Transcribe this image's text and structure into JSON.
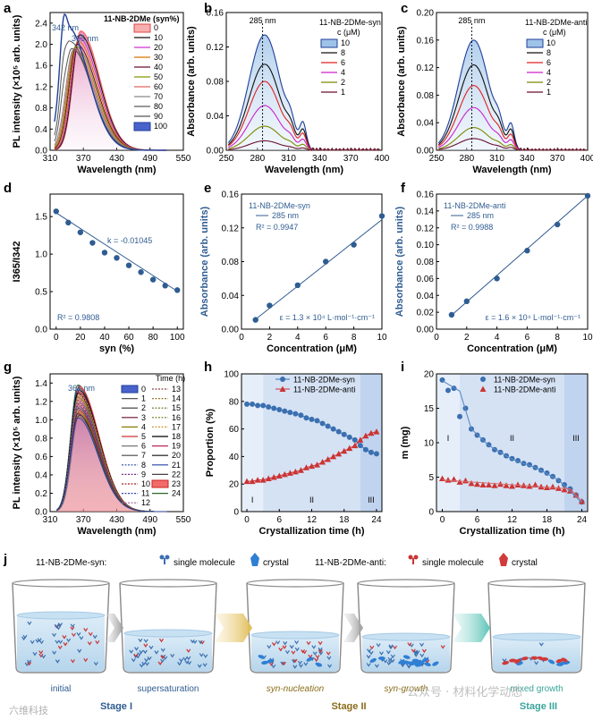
{
  "panel_letters": [
    "a",
    "b",
    "c",
    "d",
    "e",
    "f",
    "g",
    "h",
    "i",
    "j"
  ],
  "colors": {
    "blue_dark": "#1f3f99",
    "axis_blue": "#2f5c91",
    "red": "#cc2222",
    "syn": "#3a6fb0",
    "anti": "#cc3333",
    "stage_blue": "#2f5c91",
    "stage_gold": "#8a6d1a",
    "stage_teal": "#3aa59a"
  },
  "chart_data": [
    {
      "panel": "a",
      "type": "line",
      "xlabel": "Wavelength (nm)",
      "ylabel": "PL intensity (×10⁵ arb. units)",
      "xlim": [
        310,
        550
      ],
      "ylim": [
        0,
        2.6
      ],
      "xticks": [
        "310",
        "370",
        "430",
        "490",
        "550"
      ],
      "yticks": [
        "0.0",
        "0.4",
        "0.8",
        "1.2",
        "1.6",
        "2.0",
        "2.4"
      ],
      "legend_title": "11-NB-2DMe (syn%)",
      "legend_entries": [
        "0",
        "10",
        "20",
        "30",
        "40",
        "50",
        "60",
        "70",
        "80",
        "90",
        "100"
      ],
      "annotations": [
        "342 nm",
        "365 nm"
      ],
      "series": [
        {
          "name": "0",
          "peak_x": 365,
          "peak_y": 2.25
        },
        {
          "name": "10",
          "peak_x": 364,
          "peak_y": 2.18
        },
        {
          "name": "20",
          "peak_x": 362,
          "peak_y": 2.12
        },
        {
          "name": "30",
          "peak_x": 360,
          "peak_y": 2.06
        },
        {
          "name": "40",
          "peak_x": 358,
          "peak_y": 2.0
        },
        {
          "name": "50",
          "peak_x": 356,
          "peak_y": 1.96
        },
        {
          "name": "60",
          "peak_x": 354,
          "peak_y": 1.92
        },
        {
          "name": "70",
          "peak_x": 352,
          "peak_y": 1.9
        },
        {
          "name": "80",
          "peak_x": 349,
          "peak_y": 1.92
        },
        {
          "name": "90",
          "peak_x": 346,
          "peak_y": 2.05
        },
        {
          "name": "100",
          "peak_x": 342,
          "peak_y": 2.32
        }
      ]
    },
    {
      "panel": "b",
      "type": "line",
      "xlabel": "Wavelength (nm)",
      "ylabel": "Absorbance (arb. units)",
      "xlim": [
        250,
        400
      ],
      "ylim": [
        0,
        0.16
      ],
      "xticks": [
        "250",
        "280",
        "310",
        "340",
        "370",
        "400"
      ],
      "yticks": [
        "0.00",
        "0.04",
        "0.08",
        "0.12",
        "0.16"
      ],
      "legend_title": "11-NB-2DMe-syn",
      "legend_subtitle": "c (μM)",
      "legend_entries": [
        "10",
        "8",
        "6",
        "4",
        "2",
        "1"
      ],
      "annotations": [
        "285 nm"
      ],
      "series": [
        {
          "name": "10",
          "peak": 0.134
        },
        {
          "name": "8",
          "peak": 0.1
        },
        {
          "name": "6",
          "peak": 0.08
        },
        {
          "name": "4",
          "peak": 0.052
        },
        {
          "name": "2",
          "peak": 0.028
        },
        {
          "name": "1",
          "peak": 0.011
        }
      ]
    },
    {
      "panel": "c",
      "type": "line",
      "xlabel": "Wavelength (nm)",
      "ylabel": "Absorbance (arb. units)",
      "xlim": [
        250,
        400
      ],
      "ylim": [
        0,
        0.2
      ],
      "xticks": [
        "250",
        "280",
        "310",
        "340",
        "370",
        "400"
      ],
      "yticks": [
        "0.00",
        "0.04",
        "0.08",
        "0.12",
        "0.16",
        "0.20"
      ],
      "legend_title": "11-NB-2DMe-anti",
      "legend_subtitle": "c (μM)",
      "legend_entries": [
        "10",
        "8",
        "6",
        "4",
        "2",
        "1"
      ],
      "annotations": [
        "285 nm"
      ],
      "series": [
        {
          "name": "10",
          "peak": 0.16
        },
        {
          "name": "8",
          "peak": 0.124
        },
        {
          "name": "6",
          "peak": 0.094
        },
        {
          "name": "4",
          "peak": 0.062
        },
        {
          "name": "2",
          "peak": 0.033
        },
        {
          "name": "1",
          "peak": 0.017
        }
      ]
    },
    {
      "panel": "d",
      "type": "scatter",
      "xlabel": "syn (%)",
      "ylabel": "I365/I342",
      "xlim": [
        -5,
        105
      ],
      "ylim": [
        0.0,
        1.8
      ],
      "xticks": [
        "0",
        "20",
        "40",
        "60",
        "80",
        "100"
      ],
      "yticks": [
        "0.0",
        "0.5",
        "1.0",
        "1.5"
      ],
      "x": [
        0,
        10,
        20,
        30,
        40,
        50,
        60,
        70,
        80,
        90,
        100
      ],
      "y": [
        1.57,
        1.42,
        1.29,
        1.15,
        1.02,
        0.95,
        0.85,
        0.76,
        0.66,
        0.58,
        0.52
      ],
      "annotations": [
        "k = -0.01045",
        "R² = 0.9808"
      ],
      "fit": {
        "slope": -0.01045,
        "intercept": 1.55
      }
    },
    {
      "panel": "e",
      "type": "scatter",
      "xlabel": "Concentration (μM)",
      "ylabel": "Absorbance (arb. units)",
      "xlim": [
        0,
        10
      ],
      "ylim": [
        0.0,
        0.16
      ],
      "xticks": [
        "0",
        "2",
        "4",
        "6",
        "8",
        "10"
      ],
      "yticks": [
        "0.00",
        "0.04",
        "0.08",
        "0.12",
        "0.16"
      ],
      "x": [
        1,
        2,
        4,
        6,
        8,
        10
      ],
      "y": [
        0.011,
        0.028,
        0.052,
        0.08,
        0.1,
        0.134
      ],
      "legend_title": "11-NB-2DMe-syn",
      "legend_entries": [
        "285 nm"
      ],
      "annotations": [
        "R² = 0.9947",
        "ε = 1.3 × 10⁴ L·mol⁻¹·cm⁻¹"
      ],
      "fit": {
        "slope": 0.01312,
        "intercept": -0.0015
      }
    },
    {
      "panel": "f",
      "type": "scatter",
      "xlabel": "Concentration (μM)",
      "ylabel": "Absorbance (arb. units)",
      "xlim": [
        0,
        10
      ],
      "ylim": [
        0.0,
        0.16
      ],
      "xticks": [
        "0",
        "2",
        "4",
        "6",
        "8",
        "10"
      ],
      "yticks": [
        "0.00",
        "0.02",
        "0.04",
        "0.06",
        "0.08",
        "0.10",
        "0.12",
        "0.14",
        "0.16"
      ],
      "x": [
        1,
        2,
        4,
        6,
        8,
        10
      ],
      "y": [
        0.017,
        0.033,
        0.06,
        0.093,
        0.124,
        0.158
      ],
      "legend_title": "11-NB-2DMe-anti",
      "legend_entries": [
        "285 nm"
      ],
      "annotations": [
        "R² = 0.9988",
        "ε = 1.6 × 10⁴ L·mol⁻¹·cm⁻¹"
      ],
      "fit": {
        "slope": 0.01572,
        "intercept": 0.0008
      }
    },
    {
      "panel": "g",
      "type": "line",
      "xlabel": "Wavelength (nm)",
      "ylabel": "PL intensity (×10⁵ arb. units)",
      "xlim": [
        310,
        550
      ],
      "ylim": [
        0,
        1.5
      ],
      "xticks": [
        "310",
        "370",
        "430",
        "490",
        "550"
      ],
      "yticks": [
        "0.0",
        "0.2",
        "0.4",
        "0.6",
        "0.8",
        "1.0",
        "1.2",
        "1.4"
      ],
      "legend_title": "Time (h)",
      "legend_entries": [
        "0",
        "1",
        "2",
        "3",
        "4",
        "5",
        "6",
        "7",
        "8",
        "9",
        "10",
        "11",
        "12",
        "13",
        "14",
        "15",
        "16",
        "17",
        "18",
        "19",
        "20",
        "21",
        "22",
        "23",
        "24"
      ],
      "annotations": [
        "361 nm"
      ],
      "peak_x": 361,
      "peak_y_range": [
        1.02,
        1.38
      ]
    },
    {
      "panel": "h",
      "type": "line",
      "xlabel": "Crystallization time (h)",
      "ylabel": "Proportion (%)",
      "xlim": [
        -1,
        25
      ],
      "ylim": [
        0,
        100
      ],
      "xticks": [
        "0",
        "6",
        "12",
        "18",
        "24"
      ],
      "yticks": [
        "0",
        "20",
        "40",
        "60",
        "80",
        "100"
      ],
      "x": [
        0,
        1,
        2,
        3,
        4,
        5,
        6,
        7,
        8,
        9,
        10,
        11,
        12,
        13,
        14,
        15,
        16,
        17,
        18,
        19,
        20,
        21,
        22,
        23,
        24
      ],
      "series": [
        {
          "name": "11-NB-2DMe-syn",
          "values": [
            78,
            78,
            77,
            77,
            76,
            75,
            74,
            73,
            72,
            71,
            70,
            68,
            67,
            66,
            64,
            62,
            60,
            58,
            56,
            54,
            52,
            48,
            45,
            43,
            42
          ]
        },
        {
          "name": "11-NB-2DMe-anti",
          "values": [
            22,
            22,
            23,
            23,
            24,
            25,
            26,
            27,
            28,
            29,
            30,
            32,
            33,
            34,
            36,
            38,
            40,
            42,
            44,
            46,
            48,
            52,
            55,
            57,
            58
          ]
        }
      ],
      "stage_labels": [
        "I",
        "II",
        "III"
      ],
      "stage_bounds": [
        3,
        21
      ]
    },
    {
      "panel": "i",
      "type": "scatter",
      "xlabel": "Crystallization time (h)",
      "ylabel": "m (mg)",
      "xlim": [
        -1,
        25
      ],
      "ylim": [
        0,
        20
      ],
      "xticks": [
        "0",
        "6",
        "12",
        "18",
        "24"
      ],
      "yticks": [
        "0",
        "5",
        "10",
        "15",
        "20"
      ],
      "x": [
        0,
        1,
        2,
        3,
        4,
        5,
        6,
        7,
        8,
        9,
        10,
        11,
        12,
        13,
        14,
        15,
        16,
        17,
        18,
        19,
        20,
        21,
        22,
        23,
        24
      ],
      "series": [
        {
          "name": "11-NB-2DMe-syn",
          "values": [
            19.1,
            17.6,
            17.9,
            13.8,
            15.0,
            12.0,
            11.1,
            10.4,
            9.7,
            9.0,
            8.6,
            8.1,
            7.7,
            7.4,
            7.0,
            6.8,
            6.4,
            6.0,
            5.6,
            5.1,
            4.5,
            3.9,
            3.3,
            2.4,
            1.4
          ]
        },
        {
          "name": "11-NB-2DMe-anti",
          "values": [
            4.8,
            4.6,
            4.7,
            4.3,
            4.5,
            4.1,
            4.0,
            3.9,
            3.9,
            3.8,
            4.0,
            3.8,
            3.7,
            3.9,
            3.8,
            3.7,
            3.9,
            3.6,
            3.5,
            3.6,
            3.4,
            3.2,
            3.0,
            2.4,
            1.5
          ]
        }
      ],
      "stage_labels": [
        "I",
        "II",
        "III"
      ],
      "stage_bounds": [
        3,
        21
      ]
    }
  ],
  "panel_j": {
    "syn_label": "11-NB-2DMe-syn:",
    "anti_label": "11-NB-2DMe-anti:",
    "single_molecule": "single molecule",
    "crystal": "crystal",
    "beaker_captions": [
      "initial",
      "supersaturation",
      "syn-nucleation",
      "syn-growth",
      "mixed growth"
    ],
    "stages": [
      "Stage I",
      "Stage II",
      "Stage III"
    ]
  },
  "watermark": {
    "left": "六维科技",
    "right": "公众号 · 材料化学动态"
  }
}
